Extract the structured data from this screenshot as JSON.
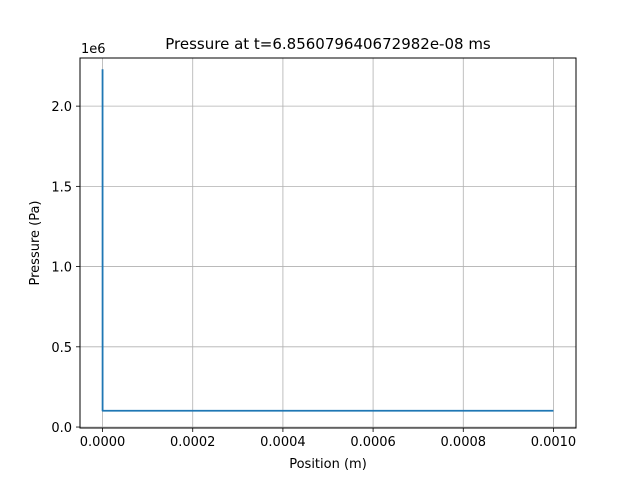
{
  "chart_data": {
    "type": "line",
    "title": "Pressure at t=6.856079640672982e-08 ms",
    "xlabel": "Position (m)",
    "ylabel": "Pressure (Pa)",
    "offset_text": "1e6",
    "xlim": [
      -5e-05,
      0.00105
    ],
    "ylim": [
      -0.006,
      2.3
    ],
    "x_ticks": [
      0,
      0.0002,
      0.0004,
      0.0006,
      0.0008,
      0.001
    ],
    "x_tick_labels": [
      "0.0000",
      "0.0002",
      "0.0004",
      "0.0006",
      "0.0008",
      "0.0010"
    ],
    "y_ticks": [
      0,
      0.5,
      1.0,
      1.5,
      2.0
    ],
    "y_tick_labels": [
      "0.0",
      "0.5",
      "1.0",
      "1.5",
      "2.0"
    ],
    "grid": true,
    "line_color": "#1f77b4",
    "series": [
      {
        "x": [
          0,
          1e-07,
          1e-06,
          0.001
        ],
        "y": [
          2.23,
          0.1013,
          0.1013,
          0.1013
        ]
      }
    ]
  }
}
